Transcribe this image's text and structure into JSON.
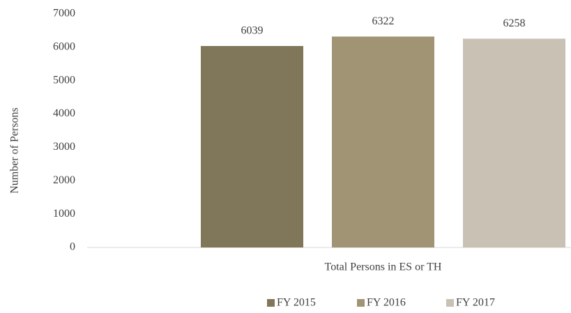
{
  "chart_data": {
    "type": "bar",
    "categories": [
      "Total Persons in ES or TH"
    ],
    "y_label": "Number of Persons",
    "series": [
      {
        "name": "FY 2015",
        "color": "#80775a",
        "values": [
          6039
        ]
      },
      {
        "name": "FY 2016",
        "color": "#a09474",
        "values": [
          6322
        ]
      },
      {
        "name": "FY 2017",
        "color": "#c9c1b4",
        "values": [
          6258
        ]
      }
    ],
    "ylim": [
      0,
      7000
    ],
    "yticks": [
      0,
      1000,
      2000,
      3000,
      4000,
      5000,
      6000,
      7000
    ],
    "grid": false,
    "legend": "bottom"
  }
}
